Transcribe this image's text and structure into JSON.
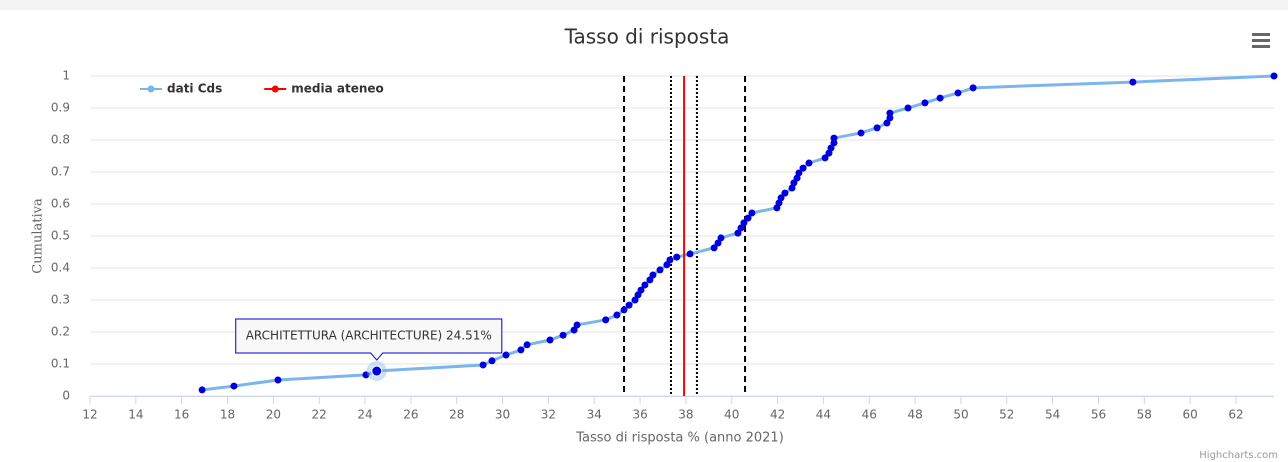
{
  "chart_data": {
    "type": "line",
    "title": "Tasso di risposta",
    "x_label": "Tasso di risposta % (anno 2021)",
    "y_label": "Cumulativa",
    "xlim": [
      12,
      63.66
    ],
    "ylim": [
      0,
      1
    ],
    "xticks": [
      12,
      14,
      16,
      18,
      20,
      22,
      24,
      26,
      28,
      30,
      32,
      34,
      36,
      38,
      40,
      42,
      44,
      46,
      48,
      50,
      52,
      54,
      56,
      58,
      60,
      62
    ],
    "yticks": [
      0,
      0.1,
      0.2,
      0.3,
      0.4,
      0.5,
      0.6,
      0.7,
      0.8,
      0.9,
      1
    ],
    "grid": true,
    "legend": "top-left",
    "series": [
      {
        "name": "dati Cds",
        "color": "#7cb5ec",
        "marker_color": "#0000dd",
        "x": [
          16.89,
          18.28,
          20.2,
          24.04,
          24.51,
          29.15,
          29.54,
          30.15,
          30.8,
          31.07,
          32.07,
          32.64,
          33.12,
          33.25,
          34.5,
          34.99,
          35.3,
          35.52,
          35.78,
          35.91,
          36.04,
          36.21,
          36.43,
          36.56,
          36.87,
          37.17,
          37.3,
          37.6,
          38.18,
          39.23,
          39.4,
          39.53,
          40.27,
          40.4,
          40.53,
          40.71,
          40.88,
          41.97,
          42.06,
          42.15,
          42.32,
          42.63,
          42.71,
          42.85,
          42.93,
          43.11,
          43.37,
          44.07,
          44.24,
          44.33,
          44.46,
          44.46,
          45.64,
          46.34,
          46.77,
          46.9,
          46.9,
          47.69,
          48.43,
          49.09,
          49.87,
          50.53,
          57.5,
          63.66
        ],
        "values": [
          0.019,
          0.031,
          0.05,
          0.066,
          0.078,
          0.097,
          0.11,
          0.128,
          0.144,
          0.16,
          0.175,
          0.19,
          0.206,
          0.222,
          0.238,
          0.253,
          0.269,
          0.284,
          0.3,
          0.316,
          0.331,
          0.347,
          0.363,
          0.378,
          0.394,
          0.41,
          0.425,
          0.434,
          0.444,
          0.463,
          0.478,
          0.494,
          0.509,
          0.525,
          0.541,
          0.556,
          0.572,
          0.588,
          0.603,
          0.619,
          0.634,
          0.65,
          0.666,
          0.681,
          0.697,
          0.712,
          0.728,
          0.744,
          0.759,
          0.775,
          0.791,
          0.806,
          0.822,
          0.838,
          0.853,
          0.869,
          0.884,
          0.9,
          0.916,
          0.931,
          0.947,
          0.963,
          0.981,
          1
        ]
      },
      {
        "name": "media ateneo",
        "color": "#ff0000",
        "x": [
          37.92,
          37.92
        ],
        "values": [
          0,
          1
        ]
      }
    ],
    "plot_lines": [
      {
        "value": 35.3,
        "dash": "dashed"
      },
      {
        "value": 37.35,
        "dash": "dotted"
      },
      {
        "value": 38.48,
        "dash": "dotted"
      },
      {
        "value": 40.58,
        "dash": "dashed"
      }
    ],
    "tooltip": {
      "series": 0,
      "point": 4,
      "text": "ARCHITETTURA (ARCHITECTURE) 24.51%"
    },
    "credits": "Highcharts.com"
  }
}
